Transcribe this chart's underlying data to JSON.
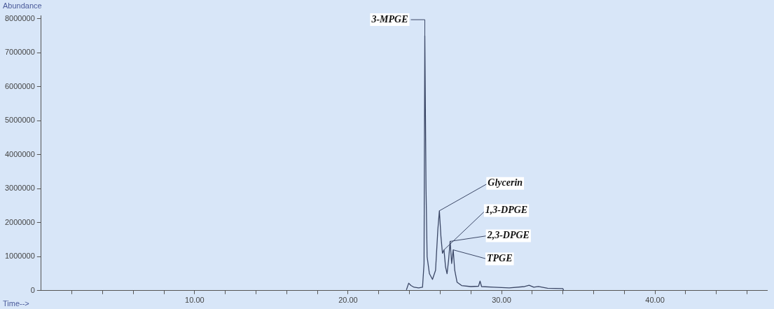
{
  "chart_data": {
    "type": "line",
    "xlabel": "Time-->",
    "ylabel": "Abundance",
    "x": [
      23.8,
      23.95,
      24.1,
      24.3,
      24.6,
      24.85,
      24.95,
      25.0,
      25.08,
      25.15,
      25.3,
      25.5,
      25.7,
      25.85,
      25.95,
      26.05,
      26.15,
      26.25,
      26.35,
      26.45,
      26.55,
      26.65,
      26.75,
      26.85,
      26.95,
      27.1,
      27.4,
      28.0,
      28.5,
      28.6,
      28.7,
      29.5,
      30.5,
      31.5,
      31.8,
      32.1,
      32.4,
      33.0,
      34.0,
      34.05
    ],
    "series": [
      {
        "color": "#3b4766",
        "values": [
          20000,
          220000,
          150000,
          100000,
          80000,
          100000,
          800000,
          7500000,
          3000000,
          1000000,
          500000,
          330000,
          600000,
          1800000,
          2350000,
          1600000,
          1100000,
          1200000,
          700000,
          500000,
          900000,
          1450000,
          800000,
          1200000,
          600000,
          250000,
          150000,
          120000,
          130000,
          280000,
          120000,
          100000,
          80000,
          120000,
          160000,
          100000,
          120000,
          70000,
          60000,
          0
        ]
      }
    ],
    "xlim": [
      0,
      47.3
    ],
    "ylim": [
      0,
      8100000
    ],
    "xticks": [
      {
        "value": 2,
        "label": null
      },
      {
        "value": 4,
        "label": null
      },
      {
        "value": 6,
        "label": null
      },
      {
        "value": 8,
        "label": null
      },
      {
        "value": 10,
        "label": "10.00"
      },
      {
        "value": 12,
        "label": null
      },
      {
        "value": 14,
        "label": null
      },
      {
        "value": 16,
        "label": null
      },
      {
        "value": 18,
        "label": null
      },
      {
        "value": 20,
        "label": "20.00"
      },
      {
        "value": 22,
        "label": null
      },
      {
        "value": 24,
        "label": null
      },
      {
        "value": 26,
        "label": null
      },
      {
        "value": 28,
        "label": null
      },
      {
        "value": 30,
        "label": "30.00"
      },
      {
        "value": 32,
        "label": null
      },
      {
        "value": 34,
        "label": null
      },
      {
        "value": 36,
        "label": null
      },
      {
        "value": 38,
        "label": null
      },
      {
        "value": 40,
        "label": "40.00"
      },
      {
        "value": 42,
        "label": null
      },
      {
        "value": 44,
        "label": null
      },
      {
        "value": 46,
        "label": null
      }
    ],
    "yticks": [
      0,
      1000000,
      2000000,
      3000000,
      4000000,
      5000000,
      6000000,
      7000000,
      8000000
    ],
    "annotations": [
      {
        "text": "3-MPGE",
        "x": 25.0,
        "y": 7500000
      },
      {
        "text": "Glycerin",
        "x": 25.95,
        "y": 2350000
      },
      {
        "text": "1,3-DPGE",
        "x": 26.25,
        "y": 1200000
      },
      {
        "text": "2,3-DPGE",
        "x": 26.65,
        "y": 1450000
      },
      {
        "text": "TPGE",
        "x": 26.85,
        "y": 1200000
      }
    ],
    "grid": false,
    "legend": false,
    "marker": "none",
    "line_style": "solid"
  }
}
